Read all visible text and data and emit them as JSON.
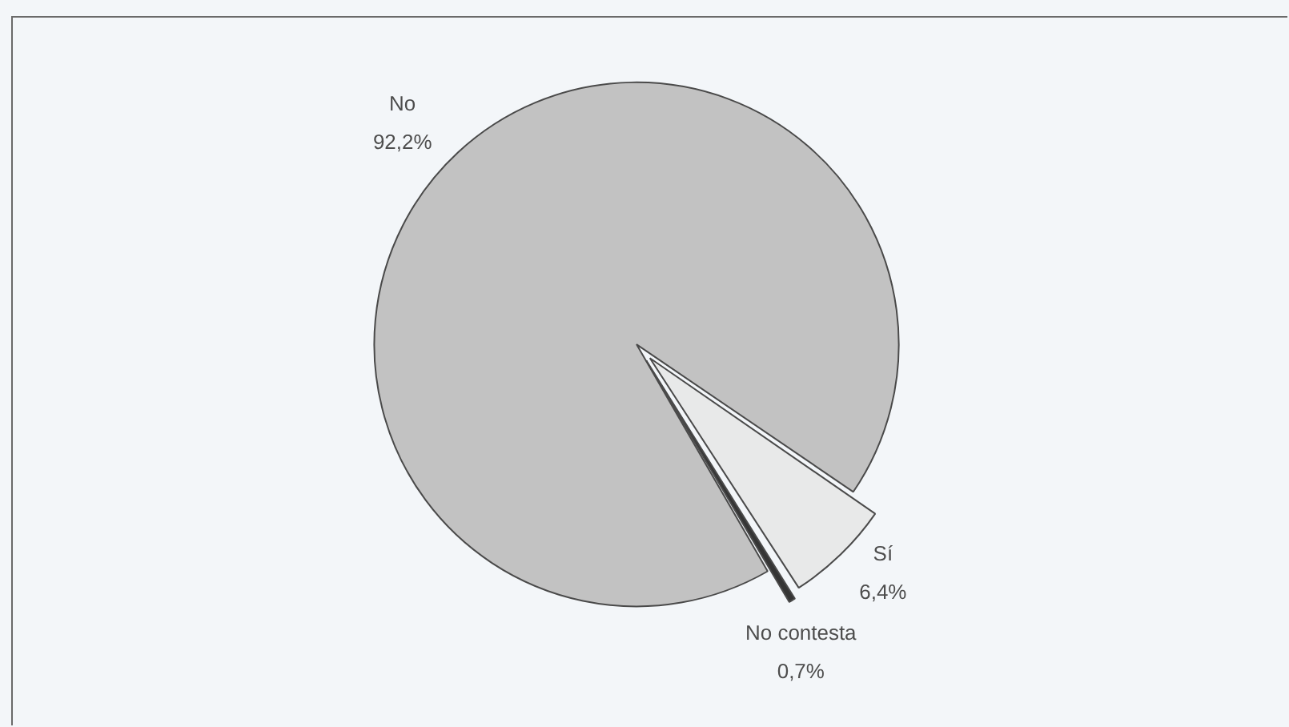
{
  "chart_data": {
    "type": "pie",
    "categories": [
      "No",
      "Sí",
      "No contesta"
    ],
    "values": [
      92.2,
      6.4,
      0.7
    ],
    "value_labels": [
      "92,2%",
      "6,4%",
      "0,7%"
    ],
    "colors": [
      "#c2c2c2",
      "#e8e9e9",
      "#353535"
    ],
    "legend": false
  }
}
